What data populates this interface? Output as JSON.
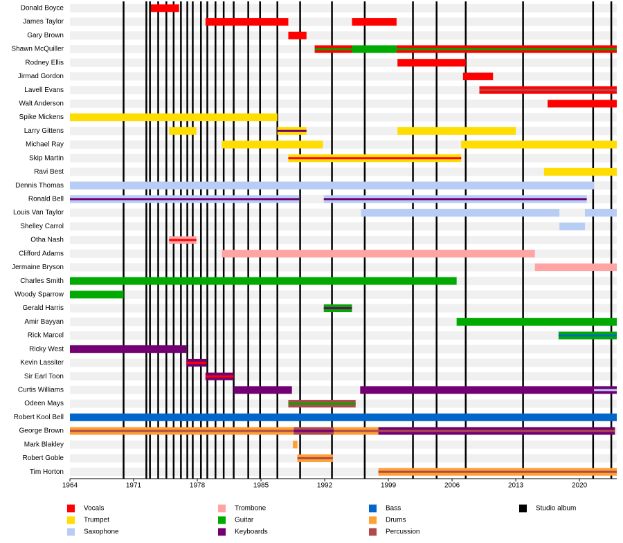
{
  "chart_data": {
    "type": "timeline",
    "xlim": [
      1964,
      2024.1
    ],
    "xticks": [
      1964,
      1971,
      1978,
      1985,
      1992,
      1999,
      2006,
      2013,
      2020
    ],
    "series": [
      {
        "name": "Vocals",
        "color": "#ff0000"
      },
      {
        "name": "Trumpet",
        "color": "#ffdd00"
      },
      {
        "name": "Saxophone",
        "color": "#b7cdf5"
      },
      {
        "name": "Trombone",
        "color": "#ffa3a3"
      },
      {
        "name": "Guitar",
        "color": "#00aa00"
      },
      {
        "name": "Keyboards",
        "color": "#730073"
      },
      {
        "name": "Bass",
        "color": "#0066cc"
      },
      {
        "name": "Drums",
        "color": "#ffa033"
      },
      {
        "name": "Percussion",
        "color": "#b04a4a"
      }
    ],
    "albums": {
      "name": "Studio album",
      "color": "#000000",
      "years": [
        1969.9,
        1972.4,
        1972.8,
        1973.7,
        1974.6,
        1975.4,
        1976.2,
        1976.9,
        1977.5,
        1978.4,
        1979.1,
        1980.0,
        1980.9,
        1982.0,
        1983.6,
        1984.9,
        1986.8,
        1989.3,
        1992.8,
        1996.4,
        2001.7,
        2004.3,
        2007.5,
        2013.8,
        2021.5,
        2023.5
      ]
    },
    "members": [
      {
        "name": "Donald Boyce",
        "spans": [
          {
            "start": 1972.9,
            "end": 1976.0,
            "role": "Vocals"
          }
        ]
      },
      {
        "name": "James Taylor",
        "spans": [
          {
            "start": 1978.9,
            "end": 1988.0,
            "role": "Vocals"
          },
          {
            "start": 1995.0,
            "end": 1999.9,
            "role": "Vocals"
          }
        ]
      },
      {
        "name": "Gary Brown",
        "spans": [
          {
            "start": 1988.0,
            "end": 1990.0,
            "role": "Vocals"
          }
        ]
      },
      {
        "name": "Shawn McQuiller",
        "spans": [
          {
            "start": 1990.9,
            "end": 1995.0,
            "role": "Vocals",
            "stripe": "Guitar"
          },
          {
            "start": 1995.0,
            "end": 1999.9,
            "role": "Guitar"
          },
          {
            "start": 1999.9,
            "end": 2024.1,
            "role": "Vocals",
            "stripe": "Guitar"
          }
        ]
      },
      {
        "name": "Rodney Ellis",
        "spans": [
          {
            "start": 2000.0,
            "end": 2007.5,
            "role": "Vocals"
          }
        ]
      },
      {
        "name": "Jirmad Gordon",
        "spans": [
          {
            "start": 2007.2,
            "end": 2010.5,
            "role": "Vocals"
          }
        ]
      },
      {
        "name": "Lavell Evans",
        "spans": [
          {
            "start": 2009.0,
            "end": 2024.1,
            "role": "Vocals",
            "stripe": "Percussion"
          }
        ]
      },
      {
        "name": "Walt Anderson",
        "spans": [
          {
            "start": 2016.5,
            "end": 2024.1,
            "role": "Vocals"
          }
        ]
      },
      {
        "name": "Spike Mickens",
        "spans": [
          {
            "start": 1964,
            "end": 1986.8,
            "role": "Trumpet"
          }
        ]
      },
      {
        "name": "Larry Gittens",
        "spans": [
          {
            "start": 1974.9,
            "end": 1977.9,
            "role": "Trumpet"
          },
          {
            "start": 1986.8,
            "end": 1990.0,
            "role": "Trumpet",
            "stripe": "Keyboards"
          },
          {
            "start": 2000.0,
            "end": 2013.0,
            "role": "Trumpet"
          }
        ]
      },
      {
        "name": "Michael Ray",
        "spans": [
          {
            "start": 1980.7,
            "end": 1991.8,
            "role": "Trumpet"
          },
          {
            "start": 2007.0,
            "end": 2024.1,
            "role": "Trumpet"
          }
        ]
      },
      {
        "name": "Skip Martin",
        "spans": [
          {
            "start": 1988.0,
            "end": 2007.0,
            "role": "Trumpet",
            "stripe": "Vocals"
          }
        ]
      },
      {
        "name": "Ravi Best",
        "spans": [
          {
            "start": 2016.1,
            "end": 2024.1,
            "role": "Trumpet"
          }
        ]
      },
      {
        "name": "Dennis Thomas",
        "spans": [
          {
            "start": 1964,
            "end": 2021.6,
            "role": "Saxophone"
          }
        ]
      },
      {
        "name": "Ronald Bell",
        "spans": [
          {
            "start": 1964,
            "end": 1989.2,
            "role": "Saxophone",
            "stripe": "Keyboards"
          },
          {
            "start": 1991.9,
            "end": 2020.8,
            "role": "Saxophone",
            "stripe": "Keyboards"
          }
        ]
      },
      {
        "name": "Louis Van Taylor",
        "spans": [
          {
            "start": 1996.0,
            "end": 2017.8,
            "role": "Saxophone"
          },
          {
            "start": 2020.6,
            "end": 2024.1,
            "role": "Saxophone"
          }
        ]
      },
      {
        "name": "Shelley Carrol",
        "spans": [
          {
            "start": 2017.8,
            "end": 2020.6,
            "role": "Saxophone"
          }
        ]
      },
      {
        "name": "Otha Nash",
        "spans": [
          {
            "start": 1974.9,
            "end": 1977.9,
            "role": "Trombone",
            "stripe": "Vocals"
          }
        ]
      },
      {
        "name": "Clifford Adams",
        "spans": [
          {
            "start": 1980.7,
            "end": 2015.1,
            "role": "Trombone"
          }
        ]
      },
      {
        "name": "Jermaine Bryson",
        "spans": [
          {
            "start": 2015.1,
            "end": 2024.1,
            "role": "Trombone"
          }
        ]
      },
      {
        "name": "Charles Smith",
        "spans": [
          {
            "start": 1964,
            "end": 2006.5,
            "role": "Guitar"
          }
        ]
      },
      {
        "name": "Woody Sparrow",
        "spans": [
          {
            "start": 1964,
            "end": 1969.9,
            "role": "Guitar"
          }
        ]
      },
      {
        "name": "Gerald Harris",
        "spans": [
          {
            "start": 1991.9,
            "end": 1995.0,
            "role": "Guitar",
            "stripe": "Keyboards"
          }
        ]
      },
      {
        "name": "Amir Bayyan",
        "spans": [
          {
            "start": 2006.5,
            "end": 2024.1,
            "role": "Guitar"
          }
        ]
      },
      {
        "name": "Rick Marcel",
        "spans": [
          {
            "start": 2017.7,
            "end": 2024.1,
            "role": "Guitar",
            "stripe": "Bass"
          }
        ]
      },
      {
        "name": "Ricky West",
        "spans": [
          {
            "start": 1964,
            "end": 1976.8,
            "role": "Keyboards"
          }
        ]
      },
      {
        "name": "Kevin Lassiter",
        "spans": [
          {
            "start": 1976.8,
            "end": 1979.0,
            "role": "Keyboards",
            "stripe": "Vocals"
          }
        ]
      },
      {
        "name": "Sir Earl Toon",
        "spans": [
          {
            "start": 1978.9,
            "end": 1982.0,
            "role": "Keyboards",
            "stripe": "Vocals"
          }
        ]
      },
      {
        "name": "Curtis Williams",
        "spans": [
          {
            "start": 1982.0,
            "end": 1988.4,
            "role": "Keyboards"
          },
          {
            "start": 1995.9,
            "end": 2021.6,
            "role": "Keyboards"
          },
          {
            "start": 2021.6,
            "end": 2024.1,
            "role": "Keyboards",
            "stripe": "Saxophone"
          }
        ]
      },
      {
        "name": "Odeen Mays",
        "spans": [
          {
            "start": 1988.0,
            "end": 1995.4,
            "role": "Percussion",
            "stripe": "Guitar"
          }
        ]
      },
      {
        "name": "Robert Kool Bell",
        "spans": [
          {
            "start": 1964,
            "end": 2024.1,
            "role": "Bass"
          }
        ]
      },
      {
        "name": "George Brown",
        "spans": [
          {
            "start": 1964,
            "end": 1988.6,
            "role": "Drums",
            "stripe": "Percussion"
          },
          {
            "start": 1988.6,
            "end": 1993.0,
            "role": "Percussion",
            "stripe": "Keyboards"
          },
          {
            "start": 1993.0,
            "end": 1997.9,
            "role": "Drums",
            "stripe": "Percussion"
          },
          {
            "start": 1997.9,
            "end": 2023.9,
            "role": "Keyboards",
            "stripe": "Percussion"
          }
        ]
      },
      {
        "name": "Mark Blakley",
        "spans": [
          {
            "start": 1988.5,
            "end": 1989.0,
            "role": "Drums"
          }
        ]
      },
      {
        "name": "Robert Goble",
        "spans": [
          {
            "start": 1989.0,
            "end": 1992.9,
            "role": "Drums",
            "stripe": "Percussion"
          }
        ]
      },
      {
        "name": "Tim Horton",
        "spans": [
          {
            "start": 1997.9,
            "end": 2024.1,
            "role": "Drums",
            "stripe": "Percussion"
          }
        ]
      }
    ]
  }
}
